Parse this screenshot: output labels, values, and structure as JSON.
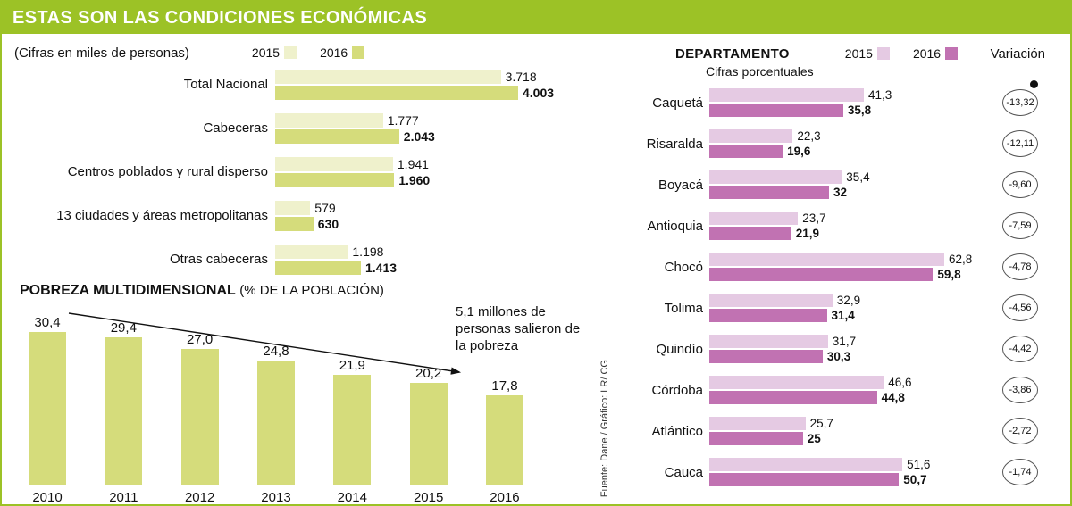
{
  "header": {
    "title": "ESTAS SON LAS CONDICIONES ECONÓMICAS"
  },
  "source_credit": "Fuente: Dane / Gráfico: LR/ CG",
  "colors": {
    "green": "#9cc226",
    "bar_2015_green": "#eff1cc",
    "bar_2016_green": "#d5dc7b",
    "bar_2015_purple": "#e5cae3",
    "bar_2016_purple": "#c172b2"
  },
  "chart_data": [
    {
      "type": "bar",
      "orientation": "horizontal",
      "subtitle": "(Cifras en miles de personas)",
      "categories": [
        "Total Nacional",
        "Cabeceras",
        "Centros poblados y rural disperso",
        "13 ciudades y áreas metropolitanas",
        "Otras cabeceras"
      ],
      "series": [
        {
          "name": "2015",
          "values": [
            3718,
            1777,
            1941,
            579,
            1198
          ],
          "labels": [
            "3.718",
            "1.777",
            "1.941",
            "579",
            "1.198"
          ]
        },
        {
          "name": "2016",
          "values": [
            4003,
            2043,
            1960,
            630,
            1413
          ],
          "labels": [
            "4.003",
            "2.043",
            "1.960",
            "630",
            "1.413"
          ]
        }
      ],
      "xlim": [
        0,
        4003
      ],
      "legend_position": "top"
    },
    {
      "type": "bar",
      "orientation": "vertical",
      "title": "POBREZA MULTIDIMENSIONAL",
      "title_suffix": "(% DE LA POBLACIÓN)",
      "categories": [
        "2010",
        "2011",
        "2012",
        "2013",
        "2014",
        "2015",
        "2016"
      ],
      "values": [
        30.4,
        29.4,
        27.0,
        24.8,
        21.9,
        20.2,
        17.8
      ],
      "labels": [
        "30,4",
        "29,4",
        "27,0",
        "24,8",
        "21,9",
        "20,2",
        "17,8"
      ],
      "ylim": [
        0,
        30.4
      ],
      "annotation": "5,1 millones de personas salieron de la pobreza",
      "trend": "down"
    },
    {
      "type": "bar",
      "orientation": "horizontal",
      "title": "DEPARTAMENTO",
      "subtitle": "Cifras porcentuales",
      "legend": [
        "2015",
        "2016"
      ],
      "variacion_label": "Variación",
      "xlim": [
        0,
        62.8
      ],
      "rows": [
        {
          "name": "Caquetá",
          "values": [
            41.3,
            35.8
          ],
          "labels": [
            "41,3",
            "35,8"
          ],
          "variacion": "-13,32"
        },
        {
          "name": "Risaralda",
          "values": [
            22.3,
            19.6
          ],
          "labels": [
            "22,3",
            "19,6"
          ],
          "variacion": "-12,11"
        },
        {
          "name": "Boyacá",
          "values": [
            35.4,
            32.0
          ],
          "labels": [
            "35,4",
            "32"
          ],
          "variacion": "-9,60"
        },
        {
          "name": "Antioquia",
          "values": [
            23.7,
            21.9
          ],
          "labels": [
            "23,7",
            "21,9"
          ],
          "variacion": "-7,59"
        },
        {
          "name": "Chocó",
          "values": [
            62.8,
            59.8
          ],
          "labels": [
            "62,8",
            "59,8"
          ],
          "variacion": "-4,78"
        },
        {
          "name": "Tolima",
          "values": [
            32.9,
            31.4
          ],
          "labels": [
            "32,9",
            "31,4"
          ],
          "variacion": "-4,56"
        },
        {
          "name": "Quindío",
          "values": [
            31.7,
            30.3
          ],
          "labels": [
            "31,7",
            "30,3"
          ],
          "variacion": "-4,42"
        },
        {
          "name": "Córdoba",
          "values": [
            46.6,
            44.8
          ],
          "labels": [
            "46,6",
            "44,8"
          ],
          "variacion": "-3,86"
        },
        {
          "name": "Atlántico",
          "values": [
            25.7,
            25.0
          ],
          "labels": [
            "25,7",
            "25"
          ],
          "variacion": "-2,72"
        },
        {
          "name": "Cauca",
          "values": [
            51.6,
            50.7
          ],
          "labels": [
            "51,6",
            "50,7"
          ],
          "variacion": "-1,74"
        }
      ]
    }
  ]
}
